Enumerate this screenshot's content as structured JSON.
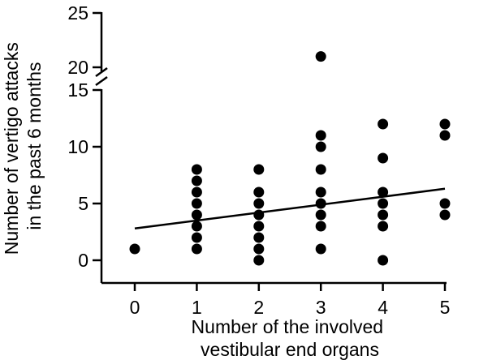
{
  "chart_data": {
    "type": "scatter",
    "xlabel_lines": [
      "Number of the involved",
      "vestibular end organs"
    ],
    "ylabel_lines": [
      "Number of vertigo attacks",
      "in the past 6 months"
    ],
    "x_ticks": [
      0,
      1,
      2,
      3,
      4,
      5
    ],
    "y_ticks_lower": [
      0,
      5,
      10,
      15
    ],
    "y_ticks_upper": [
      20,
      25
    ],
    "xlim": [
      -0.3,
      5.3
    ],
    "ylim_lower": [
      0,
      15
    ],
    "ylim_upper": [
      20,
      25
    ],
    "axis_break": true,
    "points": [
      {
        "x": 0,
        "y": 1
      },
      {
        "x": 1,
        "y": 1
      },
      {
        "x": 1,
        "y": 2
      },
      {
        "x": 1,
        "y": 3
      },
      {
        "x": 1,
        "y": 4
      },
      {
        "x": 1,
        "y": 5
      },
      {
        "x": 1,
        "y": 6
      },
      {
        "x": 1,
        "y": 7
      },
      {
        "x": 1,
        "y": 8
      },
      {
        "x": 2,
        "y": 0
      },
      {
        "x": 2,
        "y": 1
      },
      {
        "x": 2,
        "y": 2
      },
      {
        "x": 2,
        "y": 3
      },
      {
        "x": 2,
        "y": 4
      },
      {
        "x": 2,
        "y": 5
      },
      {
        "x": 2,
        "y": 6
      },
      {
        "x": 2,
        "y": 8
      },
      {
        "x": 3,
        "y": 1
      },
      {
        "x": 3,
        "y": 3
      },
      {
        "x": 3,
        "y": 4
      },
      {
        "x": 3,
        "y": 5
      },
      {
        "x": 3,
        "y": 6
      },
      {
        "x": 3,
        "y": 8
      },
      {
        "x": 3,
        "y": 10
      },
      {
        "x": 3,
        "y": 11
      },
      {
        "x": 3,
        "y": 21
      },
      {
        "x": 4,
        "y": 0
      },
      {
        "x": 4,
        "y": 3
      },
      {
        "x": 4,
        "y": 4
      },
      {
        "x": 4,
        "y": 5
      },
      {
        "x": 4,
        "y": 6
      },
      {
        "x": 4,
        "y": 9
      },
      {
        "x": 4,
        "y": 12
      },
      {
        "x": 5,
        "y": 4
      },
      {
        "x": 5,
        "y": 5
      },
      {
        "x": 5,
        "y": 11
      },
      {
        "x": 5,
        "y": 12
      }
    ],
    "trend_line": {
      "x": [
        0,
        5
      ],
      "y": [
        2.8,
        6.3
      ]
    },
    "grid": false,
    "legend": "none"
  }
}
